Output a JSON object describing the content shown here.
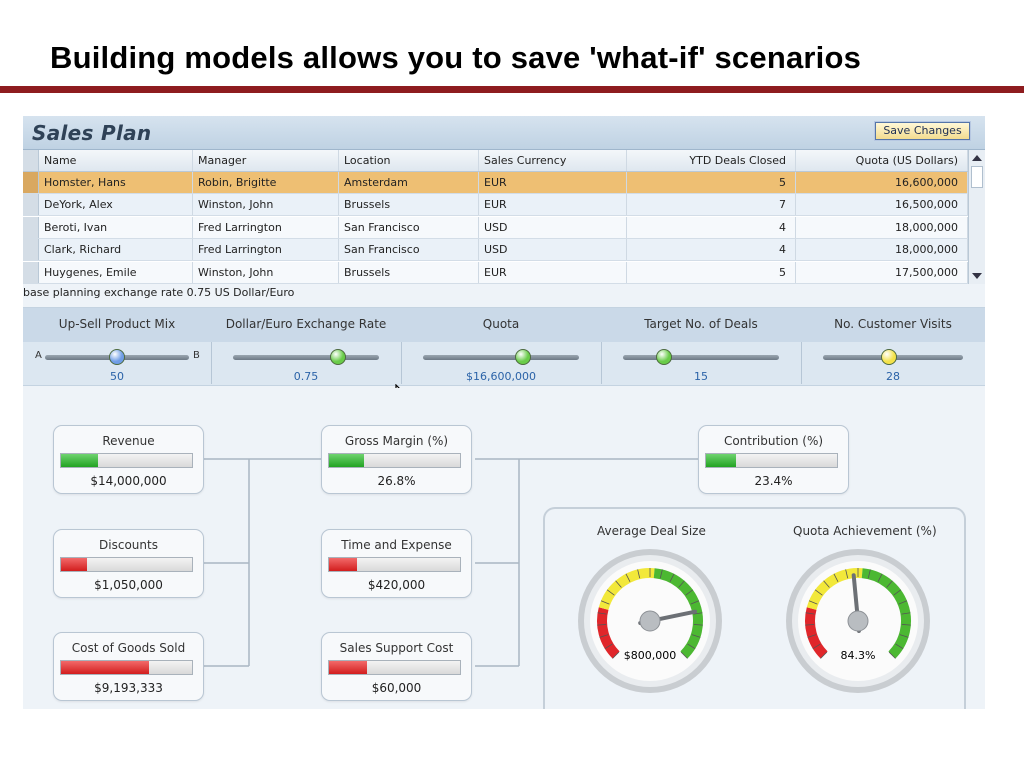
{
  "slide": {
    "title": "Building models allows you to save 'what-if' scenarios"
  },
  "app": {
    "title": "Sales Plan",
    "save_label": "Save Changes"
  },
  "table": {
    "columns": [
      "Name",
      "Manager",
      "Location",
      "Sales Currency",
      "YTD Deals Closed",
      "Quota (US Dollars)"
    ],
    "rows": [
      {
        "name": "Homster, Hans",
        "manager": "Robin, Brigitte",
        "location": "Amsterdam",
        "currency": "EUR",
        "deals": "5",
        "quota": "16,600,000",
        "selected": true
      },
      {
        "name": "DeYork, Alex",
        "manager": "Winston, John",
        "location": "Brussels",
        "currency": "EUR",
        "deals": "7",
        "quota": "16,500,000"
      },
      {
        "name": "Beroti, Ivan",
        "manager": "Fred Larrington",
        "location": "San Francisco",
        "currency": "USD",
        "deals": "4",
        "quota": "18,000,000"
      },
      {
        "name": "Clark, Richard",
        "manager": "Fred Larrington",
        "location": "San Francisco",
        "currency": "USD",
        "deals": "4",
        "quota": "18,000,000"
      },
      {
        "name": "Huygenes, Emile",
        "manager": "Winston, John",
        "location": "Brussels",
        "currency": "EUR",
        "deals": "5",
        "quota": "17,500,000"
      }
    ]
  },
  "rate_note": "base planning exchange rate 0.75 US Dollar/Euro",
  "drivers": [
    {
      "label": "Up-Sell Product Mix",
      "value": "50",
      "level": 0.5,
      "knob_color": "#6f9de6",
      "left_label": "A",
      "right_label": "B"
    },
    {
      "label": "Dollar/Euro Exchange Rate",
      "value": "0.75",
      "level": 0.72,
      "knob_color": "#69cc49"
    },
    {
      "label": "Quota",
      "value": "$16,600,000",
      "level": 0.64,
      "knob_color": "#69cc49"
    },
    {
      "label": "Target No. of Deals",
      "value": "15",
      "level": 0.26,
      "knob_color": "#69cc49"
    },
    {
      "label": "No. Customer Visits",
      "value": "28",
      "level": 0.47,
      "knob_color": "#f4e24a"
    }
  ],
  "kpis": {
    "revenue": {
      "label": "Revenue",
      "value": "$14,000,000",
      "level": 0.28,
      "color": "green"
    },
    "discounts": {
      "label": "Discounts",
      "value": "$1,050,000",
      "level": 0.2,
      "color": "red"
    },
    "cogs": {
      "label": "Cost of Goods Sold",
      "value": "$9,193,333",
      "level": 0.67,
      "color": "red"
    },
    "gross_margin": {
      "label": "Gross Margin (%)",
      "value": "26.8%",
      "level": 0.27,
      "color": "green"
    },
    "time_expense": {
      "label": "Time and Expense",
      "value": "$420,000",
      "level": 0.21,
      "color": "red"
    },
    "sales_support": {
      "label": "Sales Support Cost",
      "value": "$60,000",
      "level": 0.29,
      "color": "red"
    },
    "contribution": {
      "label": "Contribution (%)",
      "value": "23.4%",
      "level": 0.23,
      "color": "green"
    }
  },
  "gauges": {
    "avg_deal": {
      "label": "Average Deal Size",
      "value": "$800,000",
      "level": 0.79
    },
    "quota_achievement": {
      "label": "Quota Achievement (%)",
      "value": "84.3%",
      "level": 0.48
    }
  },
  "colors": {
    "title_rule": "#8e1c1f",
    "selected_row": "#eebf73",
    "gauge_red": "#e0262a",
    "gauge_yellow": "#f2e83a",
    "gauge_green": "#4cb832"
  }
}
